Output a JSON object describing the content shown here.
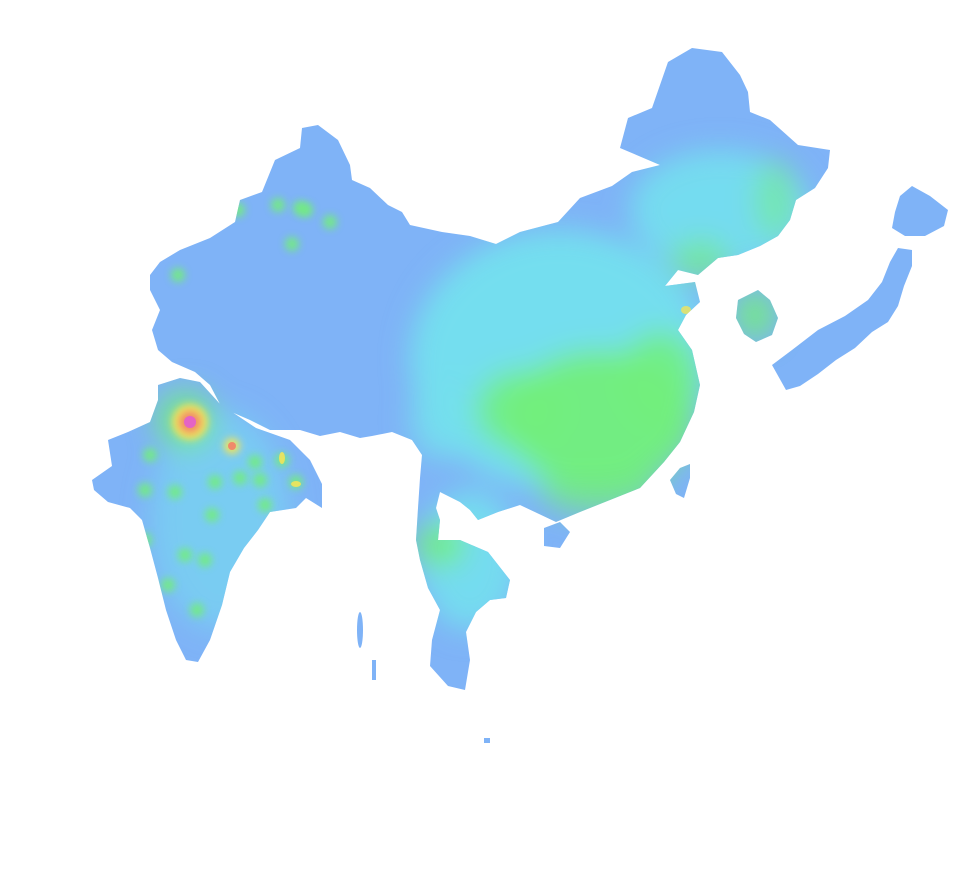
{
  "map": {
    "kind": "heatmap",
    "projection": "equirectangular-like",
    "colors": {
      "background": "#ffffff",
      "land_low": "#7fb3f7",
      "land_mid": "#74e0ee",
      "land_high": "#72ee7c",
      "hot_yellow": "#f2e45a",
      "hot_red": "#f08a6a",
      "hot_pink": "#e463c5"
    },
    "regions": [
      {
        "name": "china",
        "intensity": "mixed"
      },
      {
        "name": "india",
        "intensity": "mixed"
      },
      {
        "name": "japan",
        "intensity": "low"
      },
      {
        "name": "korea",
        "intensity": "mid"
      },
      {
        "name": "taiwan",
        "intensity": "mid"
      },
      {
        "name": "hainan",
        "intensity": "mid"
      },
      {
        "name": "thailand-indochina",
        "intensity": "mid"
      },
      {
        "name": "sri-lanka",
        "intensity": "mid"
      },
      {
        "name": "andaman-islands",
        "intensity": "low"
      }
    ],
    "hotspots": [
      {
        "name": "delhi",
        "intensity": "max"
      },
      {
        "name": "lucknow",
        "intensity": "high"
      },
      {
        "name": "beijing",
        "intensity": "mid-high"
      },
      {
        "name": "shanghai",
        "intensity": "mid-high"
      },
      {
        "name": "guangzhou",
        "intensity": "mid-high"
      },
      {
        "name": "chengdu",
        "intensity": "mid-high"
      },
      {
        "name": "bangkok",
        "intensity": "mid-high"
      },
      {
        "name": "seoul",
        "intensity": "mid-high"
      }
    ]
  }
}
